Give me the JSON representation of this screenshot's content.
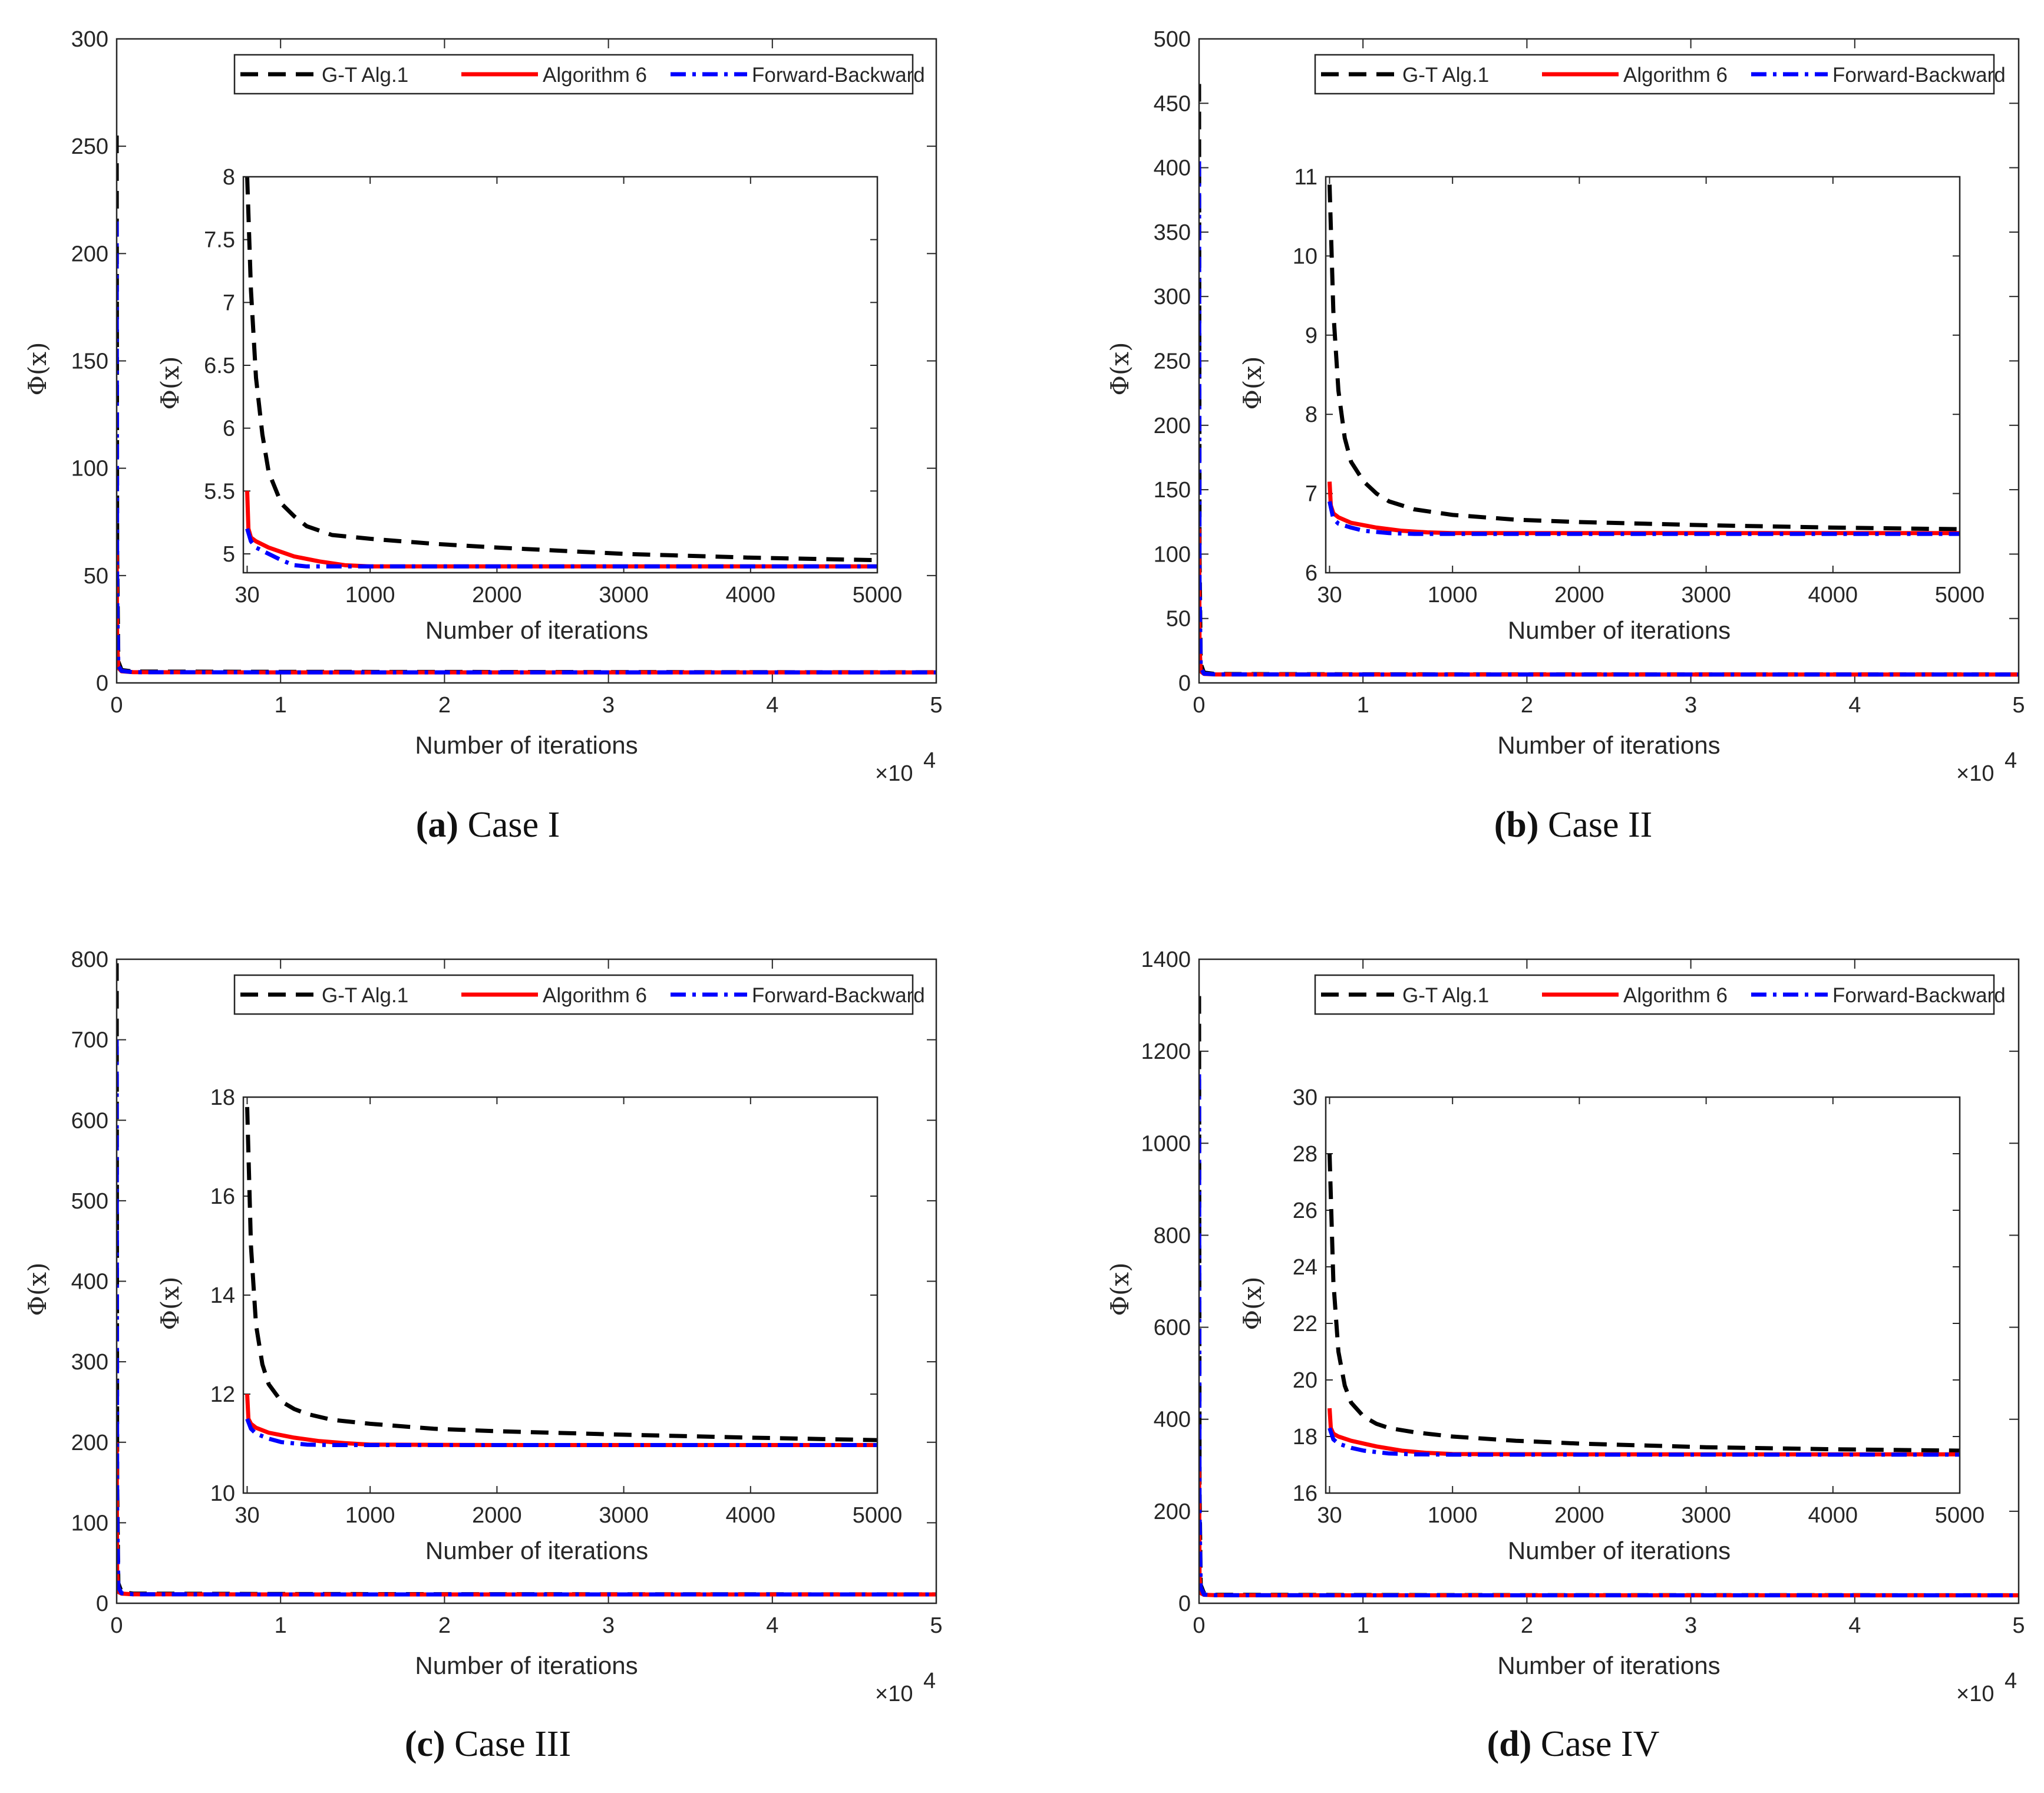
{
  "figure": {
    "legend": {
      "entries": [
        {
          "label": "G-T Alg.1",
          "color": "#000000",
          "style": "dashed"
        },
        {
          "label": "Algorithm 6",
          "color": "#ff0000",
          "style": "solid"
        },
        {
          "label": "Forward-Backward",
          "color": "#0000ff",
          "style": "dashdot"
        }
      ]
    },
    "common": {
      "xlabel": "Number of iterations",
      "ylabel_main": "Φ(x)",
      "ylabel_inset": "Φ(x)",
      "x_multiplier_base": "×10",
      "x_multiplier_exp": "4"
    }
  },
  "chart_data": [
    {
      "type": "line",
      "panel": "a",
      "caption_letter": "(a)",
      "caption_text": "Case I",
      "main": {
        "xlim": [
          0,
          5
        ],
        "ylim": [
          0,
          300
        ],
        "xticks": [
          0,
          1,
          2,
          3,
          4,
          5
        ],
        "yticks": [
          0,
          50,
          100,
          150,
          200,
          250,
          300
        ],
        "series": [
          {
            "name": "G-T Alg.1",
            "x": [
              0,
              0.003,
              0.01,
              0.03,
              0.1,
              1,
              2,
              3,
              4,
              5
            ],
            "y": [
              255,
              60,
              10,
              6,
              5.3,
              5.15,
              5.1,
              5.05,
              5.0,
              4.97
            ]
          },
          {
            "name": "Algorithm 6",
            "x": [
              0,
              0.003,
              0.01,
              0.03,
              0.1,
              1,
              2,
              3,
              4,
              5
            ],
            "y": [
              60,
              20,
              7,
              5.4,
              5.0,
              4.92,
              4.9,
              4.9,
              4.9,
              4.9
            ]
          },
          {
            "name": "Forward-Backward",
            "x": [
              0,
              0.003,
              0.01,
              0.03,
              0.1,
              1,
              2,
              3,
              4,
              5
            ],
            "y": [
              215,
              40,
              8,
              5.6,
              5.0,
              4.92,
              4.9,
              4.9,
              4.9,
              4.9
            ]
          }
        ]
      },
      "inset": {
        "xlim": [
          0,
          5000
        ],
        "ylim": [
          4.85,
          8
        ],
        "xticks": [
          30,
          1000,
          2000,
          3000,
          4000,
          5000
        ],
        "yticks": [
          5,
          5.5,
          6,
          6.5,
          7,
          7.5,
          8
        ],
        "series": [
          {
            "name": "G-T Alg.1",
            "x": [
              30,
              60,
              100,
              150,
              200,
              300,
              400,
              500,
              700,
              1000,
              1500,
              2000,
              3000,
              4000,
              5000
            ],
            "y": [
              8.0,
              7.1,
              6.4,
              5.95,
              5.65,
              5.4,
              5.3,
              5.22,
              5.15,
              5.12,
              5.08,
              5.05,
              5.0,
              4.97,
              4.95
            ]
          },
          {
            "name": "Algorithm 6",
            "x": [
              30,
              40,
              60,
              100,
              200,
              400,
              600,
              800,
              1000,
              1500,
              2000,
              3000,
              4000,
              5000
            ],
            "y": [
              5.5,
              5.2,
              5.13,
              5.1,
              5.05,
              4.98,
              4.94,
              4.91,
              4.9,
              4.9,
              4.9,
              4.9,
              4.9,
              4.9
            ]
          },
          {
            "name": "Forward-Backward",
            "x": [
              30,
              60,
              100,
              200,
              300,
              400,
              500,
              700,
              1000,
              2000,
              3000,
              4000,
              5000
            ],
            "y": [
              5.2,
              5.1,
              5.05,
              5.0,
              4.95,
              4.91,
              4.9,
              4.9,
              4.9,
              4.9,
              4.9,
              4.9,
              4.9
            ]
          }
        ]
      }
    },
    {
      "type": "line",
      "panel": "b",
      "caption_letter": "(b)",
      "caption_text": "Case II",
      "main": {
        "xlim": [
          0,
          5
        ],
        "ylim": [
          0,
          500
        ],
        "xticks": [
          0,
          1,
          2,
          3,
          4,
          5
        ],
        "yticks": [
          0,
          50,
          100,
          150,
          200,
          250,
          300,
          350,
          400,
          450,
          500
        ],
        "series": [
          {
            "name": "G-T Alg.1",
            "x": [
              0,
              0.003,
              0.01,
              0.03,
              0.1,
              1,
              2,
              3,
              4,
              5
            ],
            "y": [
              465,
              100,
              15,
              8,
              6.9,
              6.7,
              6.65,
              6.6,
              6.58,
              6.55
            ]
          },
          {
            "name": "Algorithm 6",
            "x": [
              0,
              0.003,
              0.01,
              0.03,
              0.1,
              1,
              2,
              3,
              4,
              5
            ],
            "y": [
              120,
              30,
              9,
              7,
              6.6,
              6.5,
              6.5,
              6.5,
              6.5,
              6.5
            ]
          },
          {
            "name": "Forward-Backward",
            "x": [
              0,
              0.003,
              0.01,
              0.03,
              0.1,
              1,
              2,
              3,
              4,
              5
            ],
            "y": [
              405,
              80,
              12,
              7.2,
              6.6,
              6.5,
              6.5,
              6.5,
              6.5,
              6.5
            ]
          }
        ]
      },
      "inset": {
        "xlim": [
          0,
          5000
        ],
        "ylim": [
          6,
          11
        ],
        "xticks": [
          30,
          1000,
          2000,
          3000,
          4000,
          5000
        ],
        "yticks": [
          6,
          7,
          8,
          9,
          10,
          11
        ],
        "series": [
          {
            "name": "G-T Alg.1",
            "x": [
              30,
              60,
              100,
              150,
              200,
              300,
              400,
              500,
              700,
              1000,
              1500,
              2000,
              3000,
              4000,
              5000
            ],
            "y": [
              10.9,
              9.3,
              8.3,
              7.7,
              7.4,
              7.15,
              7.0,
              6.9,
              6.8,
              6.73,
              6.67,
              6.64,
              6.6,
              6.57,
              6.55
            ]
          },
          {
            "name": "Algorithm 6",
            "x": [
              30,
              40,
              60,
              100,
              200,
              400,
              600,
              800,
              1000,
              2000,
              3000,
              4000,
              5000
            ],
            "y": [
              7.15,
              6.85,
              6.75,
              6.7,
              6.63,
              6.57,
              6.53,
              6.51,
              6.5,
              6.5,
              6.5,
              6.5,
              6.5
            ]
          },
          {
            "name": "Forward-Backward",
            "x": [
              30,
              60,
              100,
              200,
              300,
              500,
              700,
              1000,
              2000,
              3000,
              4000,
              5000
            ],
            "y": [
              6.9,
              6.68,
              6.62,
              6.57,
              6.53,
              6.5,
              6.49,
              6.49,
              6.49,
              6.49,
              6.49,
              6.49
            ]
          }
        ]
      }
    },
    {
      "type": "line",
      "panel": "c",
      "caption_letter": "(c)",
      "caption_text": "Case III",
      "main": {
        "xlim": [
          0,
          5
        ],
        "ylim": [
          0,
          800
        ],
        "xticks": [
          0,
          1,
          2,
          3,
          4,
          5
        ],
        "yticks": [
          0,
          100,
          200,
          300,
          400,
          500,
          600,
          700,
          800
        ],
        "series": [
          {
            "name": "G-T Alg.1",
            "x": [
              0,
              0.003,
              0.01,
              0.03,
              0.1,
              1,
              2,
              3,
              4,
              5
            ],
            "y": [
              795,
              150,
              25,
              14,
              12,
              11.5,
              11.3,
              11.2,
              11.1,
              11.05
            ]
          },
          {
            "name": "Algorithm 6",
            "x": [
              0,
              0.003,
              0.01,
              0.03,
              0.1,
              1,
              2,
              3,
              4,
              5
            ],
            "y": [
              200,
              40,
              14,
              12,
              11.2,
              11.0,
              11.0,
              11.0,
              11.0,
              11.0
            ]
          },
          {
            "name": "Forward-Backward",
            "x": [
              0,
              0.003,
              0.01,
              0.03,
              0.1,
              1,
              2,
              3,
              4,
              5
            ],
            "y": [
              700,
              120,
              20,
              12.5,
              11.2,
              11.0,
              11.0,
              11.0,
              11.0,
              11.0
            ]
          }
        ]
      },
      "inset": {
        "xlim": [
          0,
          5000
        ],
        "ylim": [
          10,
          18
        ],
        "xticks": [
          30,
          1000,
          2000,
          3000,
          4000,
          5000
        ],
        "yticks": [
          10,
          12,
          14,
          16,
          18
        ],
        "series": [
          {
            "name": "G-T Alg.1",
            "x": [
              30,
              60,
              100,
              150,
              200,
              300,
              400,
              500,
              700,
              1000,
              1500,
              2000,
              3000,
              4000,
              5000
            ],
            "y": [
              17.8,
              15.0,
              13.4,
              12.6,
              12.2,
              11.85,
              11.7,
              11.6,
              11.48,
              11.4,
              11.3,
              11.25,
              11.18,
              11.12,
              11.07
            ]
          },
          {
            "name": "Algorithm 6",
            "x": [
              30,
              40,
              60,
              100,
              200,
              400,
              600,
              800,
              1000,
              2000,
              3000,
              4000,
              5000
            ],
            "y": [
              12.0,
              11.5,
              11.4,
              11.32,
              11.22,
              11.12,
              11.05,
              11.01,
              10.98,
              10.97,
              10.97,
              10.97,
              10.97
            ]
          },
          {
            "name": "Forward-Backward",
            "x": [
              30,
              60,
              100,
              200,
              300,
              500,
              700,
              1000,
              2000,
              3000,
              4000,
              5000
            ],
            "y": [
              11.5,
              11.3,
              11.2,
              11.1,
              11.03,
              10.98,
              10.97,
              10.97,
              10.97,
              10.97,
              10.97,
              10.97
            ]
          }
        ]
      }
    },
    {
      "type": "line",
      "panel": "d",
      "caption_letter": "(d)",
      "caption_text": "Case IV",
      "main": {
        "xlim": [
          0,
          5
        ],
        "ylim": [
          0,
          1400
        ],
        "xticks": [
          0,
          1,
          2,
          3,
          4,
          5
        ],
        "yticks": [
          0,
          200,
          400,
          600,
          800,
          1000,
          1200,
          1400
        ],
        "series": [
          {
            "name": "G-T Alg.1",
            "x": [
              0,
              0.003,
              0.01,
              0.03,
              0.1,
              1,
              2,
              3,
              4,
              5
            ],
            "y": [
              1320,
              250,
              40,
              22,
              18.5,
              17.9,
              17.7,
              17.6,
              17.5,
              17.45
            ]
          },
          {
            "name": "Algorithm 6",
            "x": [
              0,
              0.003,
              0.01,
              0.03,
              0.1,
              1,
              2,
              3,
              4,
              5
            ],
            "y": [
              300,
              60,
              22,
              18.5,
              17.5,
              17.3,
              17.3,
              17.3,
              17.3,
              17.3
            ]
          },
          {
            "name": "Forward-Backward",
            "x": [
              0,
              0.003,
              0.01,
              0.03,
              0.1,
              1,
              2,
              3,
              4,
              5
            ],
            "y": [
              1150,
              200,
              35,
              19,
              17.5,
              17.3,
              17.3,
              17.3,
              17.3,
              17.3
            ]
          }
        ]
      },
      "inset": {
        "xlim": [
          0,
          5000
        ],
        "ylim": [
          16,
          30
        ],
        "xticks": [
          30,
          1000,
          2000,
          3000,
          4000,
          5000
        ],
        "yticks": [
          16,
          18,
          20,
          22,
          24,
          26,
          28,
          30
        ],
        "series": [
          {
            "name": "G-T Alg.1",
            "x": [
              30,
              60,
              100,
              150,
              200,
              300,
              400,
              500,
              700,
              1000,
              1500,
              2000,
              3000,
              4000,
              5000
            ],
            "y": [
              28.0,
              23.5,
              21.0,
              19.8,
              19.2,
              18.7,
              18.45,
              18.3,
              18.15,
              18.0,
              17.85,
              17.75,
              17.62,
              17.55,
              17.5
            ]
          },
          {
            "name": "Algorithm 6",
            "x": [
              30,
              40,
              60,
              100,
              200,
              400,
              600,
              800,
              1000,
              2000,
              3000,
              4000,
              5000
            ],
            "y": [
              19.0,
              18.3,
              18.1,
              18.0,
              17.85,
              17.65,
              17.5,
              17.42,
              17.38,
              17.37,
              17.37,
              17.37,
              17.37
            ]
          },
          {
            "name": "Forward-Backward",
            "x": [
              30,
              60,
              100,
              200,
              300,
              500,
              700,
              1000,
              2000,
              3000,
              4000,
              5000
            ],
            "y": [
              18.3,
              17.9,
              17.75,
              17.6,
              17.5,
              17.4,
              17.37,
              17.36,
              17.36,
              17.36,
              17.36,
              17.36
            ]
          }
        ]
      }
    }
  ]
}
